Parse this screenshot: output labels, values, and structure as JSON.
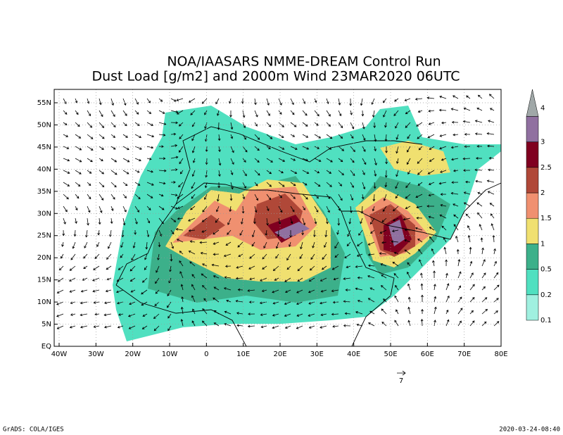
{
  "title": {
    "line1": "NOA/IAASARS NMME-DREAM Control Run",
    "line2": "Dust Load [g/m2] and 2000m Wind 23MAR2020 06UTC"
  },
  "map": {
    "lat_labels": [
      "55N",
      "50N",
      "45N",
      "40N",
      "35N",
      "30N",
      "25N",
      "20N",
      "15N",
      "10N",
      "5N",
      "EQ"
    ],
    "lon_labels": [
      "40W",
      "30W",
      "20W",
      "10W",
      "0",
      "10E",
      "20E",
      "30E",
      "40E",
      "50E",
      "60E",
      "70E",
      "80E"
    ]
  },
  "colorbar": {
    "levels": [
      0.1,
      0.2,
      0.5,
      1,
      1.5,
      2,
      2.5,
      3,
      4
    ],
    "colors": [
      "#a0f0e0",
      "#50e0c0",
      "#3cb08a",
      "#f0e070",
      "#f09070",
      "#b04838",
      "#800020",
      "#9070a0",
      "#a0a8a8"
    ]
  },
  "wind_reference": {
    "label": "7"
  },
  "footer": {
    "left": "GrADS: COLA/IGES",
    "right": "2020-03-24-08:40"
  }
}
